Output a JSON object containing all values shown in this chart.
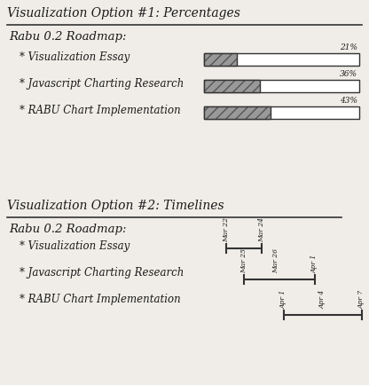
{
  "title1": "Visualization Option #1: Percentages",
  "title2": "Visualization Option #2: Timelines",
  "subtitle": "Rabu 0.2 Roadmap:",
  "features": [
    "* Visualization Essay",
    "* Javascript Charting Research",
    "* RABU Chart Implementation"
  ],
  "percentages": [
    21,
    36,
    43
  ],
  "pct_labels": [
    "21%",
    "36%",
    "43%"
  ],
  "bg_color": "#f0ede8",
  "bar_hatch": "///",
  "tl_date_labels_1": [
    "Mar 24"
  ],
  "tl_date_labels_2": [
    "Mar 25",
    "Mar 26",
    "Apr 1"
  ],
  "tl_date_labels_3": [
    "Apr 1",
    "Apr 4",
    "Apr 7"
  ]
}
